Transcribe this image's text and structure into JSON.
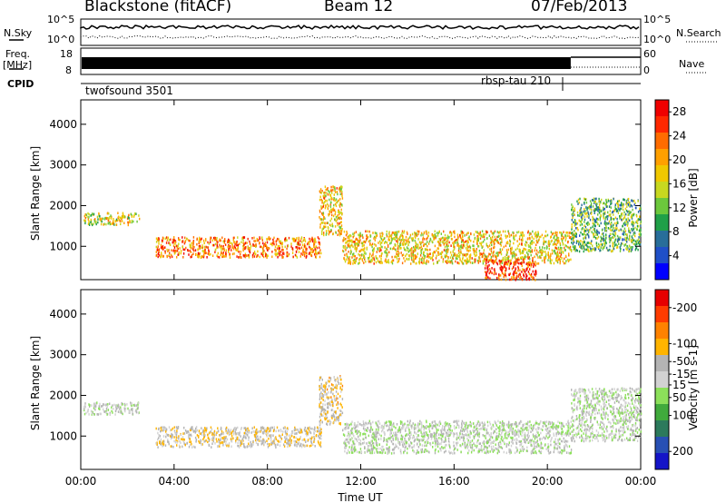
{
  "header": {
    "station": "Blackstone (fitACF)",
    "beam": "Beam 12",
    "date": "07/Feb/2013"
  },
  "aux": {
    "nsky_label": "N.Sky",
    "nsky_ticks": [
      "10^5",
      "10^0"
    ],
    "nsearch_label": "N.Search",
    "freq_label": "Freq.",
    "freq_unit": "[MHz]",
    "freq_ticks": [
      "18",
      "8"
    ],
    "nave_label": "Nave",
    "nave_ticks": [
      "60",
      "0"
    ],
    "cpid_label": "CPID",
    "cpid_programs": [
      "twofsound 3501",
      "rbsp-tau 210"
    ]
  },
  "colors": {
    "power_scale": [
      "#0000ff",
      "#2050c8",
      "#286e9a",
      "#20a048",
      "#6cc83c",
      "#c8d820",
      "#f0c800",
      "#ffa000",
      "#ff6c00",
      "#ff2800",
      "#f00000"
    ],
    "velocity_scale": [
      "#1414c8",
      "#2850b4",
      "#2c7a5c",
      "#40aa3c",
      "#8ce05a",
      "#d2d2d2",
      "#b4b4b4",
      "#ffb400",
      "#ff8200",
      "#ff3c00",
      "#e60000"
    ]
  },
  "chart_data": [
    {
      "type": "heatmap",
      "panel": "power",
      "ylabel": "Slant Range [km]",
      "ylim": [
        180,
        4600
      ],
      "yticks": [
        "1000",
        "2000",
        "3000",
        "4000"
      ],
      "xlim": [
        "00:00",
        "24:00"
      ],
      "xticks": [
        "00:00",
        "04:00",
        "08:00",
        "12:00",
        "16:00",
        "20:00",
        "00:00"
      ],
      "colorbar": {
        "label": "Power [dB]",
        "ticks": [
          "4",
          "8",
          "12",
          "16",
          "20",
          "24",
          "28"
        ],
        "range": [
          0,
          30
        ]
      },
      "echo_regions": [
        {
          "start_ut": 0.1,
          "end_ut": 2.5,
          "range_km": [
            1550,
            1850
          ],
          "level": 16
        },
        {
          "start_ut": 3.2,
          "end_ut": 10.3,
          "range_km": [
            750,
            1250
          ],
          "level": 22
        },
        {
          "start_ut": 10.2,
          "end_ut": 11.2,
          "range_km": [
            1300,
            2500
          ],
          "level": 18
        },
        {
          "start_ut": 11.2,
          "end_ut": 21.0,
          "range_km": [
            600,
            1400
          ],
          "level": 18
        },
        {
          "start_ut": 17.3,
          "end_ut": 19.5,
          "range_km": [
            200,
            700
          ],
          "level": 26
        },
        {
          "start_ut": 21.0,
          "end_ut": 24.0,
          "range_km": [
            900,
            2200
          ],
          "level": 12
        }
      ]
    },
    {
      "type": "heatmap",
      "panel": "velocity",
      "ylabel": "Slant Range [km]",
      "ylim": [
        180,
        4600
      ],
      "yticks": [
        "1000",
        "2000",
        "3000",
        "4000"
      ],
      "xlim": [
        "00:00",
        "24:00"
      ],
      "xticks": [
        "00:00",
        "04:00",
        "08:00",
        "12:00",
        "16:00",
        "20:00",
        "00:00"
      ],
      "xlabel": "Time UT",
      "colorbar": {
        "label": "Velocity [m s-1]",
        "ticks": [
          "200",
          "100",
          "50",
          "15",
          "-15",
          "-50",
          "-100",
          "-200"
        ],
        "range": [
          250,
          -250
        ]
      },
      "echo_regions": [
        {
          "start_ut": 0.1,
          "end_ut": 2.5,
          "range_km": [
            1550,
            1850
          ],
          "level": 0
        },
        {
          "start_ut": 3.2,
          "end_ut": 10.3,
          "range_km": [
            750,
            1250
          ],
          "level": -50
        },
        {
          "start_ut": 10.2,
          "end_ut": 11.2,
          "range_km": [
            1300,
            2500
          ],
          "level": -60
        },
        {
          "start_ut": 11.2,
          "end_ut": 21.0,
          "range_km": [
            600,
            1400
          ],
          "level": 0
        },
        {
          "start_ut": 21.0,
          "end_ut": 24.0,
          "range_km": [
            900,
            2200
          ],
          "level": 0
        }
      ]
    }
  ]
}
